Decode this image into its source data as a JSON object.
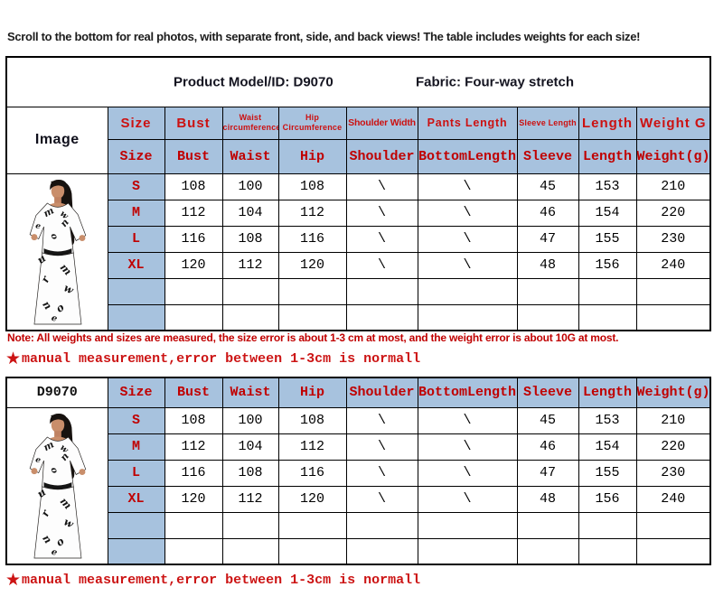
{
  "page": {
    "top_notice": "Scroll to the bottom for real photos, with separate front, side, and back views! The table includes weights for each size!",
    "note": "Note: All weights and sizes are measured, the size error is about 1-3 cm at most, and the weight error is about 10G at most.",
    "star_icon": "★",
    "star_note": "manual measurement,error between 1-3cm is normall"
  },
  "title": {
    "model": "Product Model/ID: D9070",
    "fabric": "Fabric: Four-way stretch"
  },
  "table1": {
    "image_header": "Image",
    "header_row1": [
      "Size",
      "Bust",
      "Waist circumference",
      "Hip Circumference",
      "Shoulder Width",
      "Pants Length",
      "Sleeve Length",
      "Length",
      "Weight G"
    ],
    "header_row2": [
      "Size",
      "Bust",
      "Waist",
      "Hip",
      "Shoulder",
      "BottomLength",
      "Sleeve",
      "Length",
      "Weight(g)"
    ],
    "rows": [
      {
        "size": "S",
        "bust": "108",
        "waist": "100",
        "hip": "108",
        "shoulder": "\\",
        "bottom_length": "\\",
        "sleeve": "45",
        "length": "153",
        "weight": "210"
      },
      {
        "size": "M",
        "bust": "112",
        "waist": "104",
        "hip": "112",
        "shoulder": "\\",
        "bottom_length": "\\",
        "sleeve": "46",
        "length": "154",
        "weight": "220"
      },
      {
        "size": "L",
        "bust": "116",
        "waist": "108",
        "hip": "116",
        "shoulder": "\\",
        "bottom_length": "\\",
        "sleeve": "47",
        "length": "155",
        "weight": "230"
      },
      {
        "size": "XL",
        "bust": "120",
        "waist": "112",
        "hip": "120",
        "shoulder": "\\",
        "bottom_length": "\\",
        "sleeve": "48",
        "length": "156",
        "weight": "240"
      }
    ],
    "empty_row_count": 2
  },
  "table2": {
    "corner_label": "D9070",
    "header": [
      "Size",
      "Bust",
      "Waist",
      "Hip",
      "Shoulder",
      "BottomLength",
      "Sleeve",
      "Length",
      "Weight(g)"
    ],
    "rows": [
      {
        "size": "S",
        "bust": "108",
        "waist": "100",
        "hip": "108",
        "shoulder": "\\",
        "bottom_length": "\\",
        "sleeve": "45",
        "length": "153",
        "weight": "210"
      },
      {
        "size": "M",
        "bust": "112",
        "waist": "104",
        "hip": "112",
        "shoulder": "\\",
        "bottom_length": "\\",
        "sleeve": "46",
        "length": "154",
        "weight": "220"
      },
      {
        "size": "L",
        "bust": "116",
        "waist": "108",
        "hip": "116",
        "shoulder": "\\",
        "bottom_length": "\\",
        "sleeve": "47",
        "length": "155",
        "weight": "230"
      },
      {
        "size": "XL",
        "bust": "120",
        "waist": "112",
        "hip": "120",
        "shoulder": "\\",
        "bottom_length": "\\",
        "sleeve": "48",
        "length": "156",
        "weight": "240"
      }
    ],
    "empty_row_count": 2
  },
  "colors": {
    "header_blue": "#a7c2de",
    "header_red": "#cc1111",
    "mono_red": "#c00000",
    "note_red": "#c00000"
  }
}
